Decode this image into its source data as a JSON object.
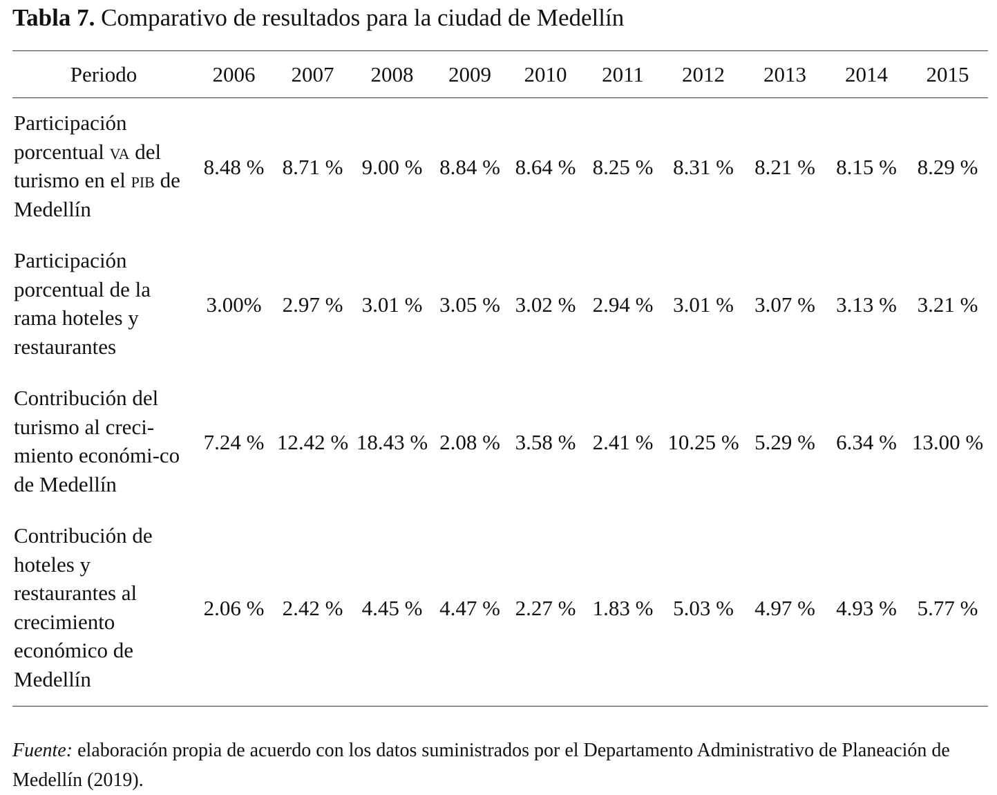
{
  "title": {
    "label": "Tabla 7.",
    "text": "Comparativo de resultados para la ciudad de Medellín"
  },
  "table": {
    "header_label": "Periodo",
    "years": [
      "2006",
      "2007",
      "2008",
      "2009",
      "2010",
      "2011",
      "2012",
      "2013",
      "2014",
      "2015"
    ],
    "rows": [
      {
        "label_parts": [
          "Participación porcentual ",
          "VA",
          " del turismo en el ",
          "PIB",
          " de Medellín"
        ],
        "values": [
          "8.48 %",
          "8.71 %",
          "9.00 %",
          "8.84 %",
          "8.64 %",
          "8.25 %",
          "8.31 %",
          "8.21 %",
          "8.15 %",
          "8.29 %"
        ]
      },
      {
        "label": "Participación porcentual de la rama hoteles y restaurantes",
        "values": [
          "3.00%",
          "2.97 %",
          "3.01 %",
          "3.05 %",
          "3.02 %",
          "2.94 %",
          "3.01 %",
          "3.07 %",
          "3.13 %",
          "3.21 %"
        ]
      },
      {
        "label": "Contribución del turismo al creci-miento económi-co de Medellín",
        "values": [
          "7.24 %",
          "12.42 %",
          "18.43 %",
          "2.08 %",
          "3.58 %",
          "2.41 %",
          "10.25 %",
          "5.29 %",
          "6.34 %",
          "13.00 %"
        ]
      },
      {
        "label": "Contribución de hoteles y restaurantes al crecimiento económico de Medellín",
        "values": [
          "2.06 %",
          "2.42 %",
          "4.45 %",
          "4.47 %",
          "2.27 %",
          "1.83 %",
          "5.03 %",
          "4.97 %",
          "4.93 %",
          "5.77 %"
        ]
      }
    ]
  },
  "footer": {
    "source_label": "Fuente:",
    "text": " elaboración propia de acuerdo con los datos suministrados por el Departamento Administrativo de Planeación de Medellín (2019)."
  }
}
